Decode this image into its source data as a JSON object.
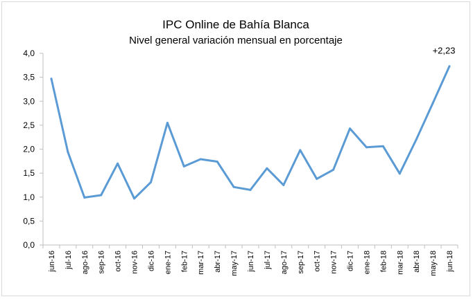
{
  "chart_data": {
    "type": "line",
    "title": "IPC Online de Bahía Blanca",
    "subtitle": "Nivel general variación mensual en porcentaje",
    "xlabel": "",
    "ylabel": "",
    "ylim": [
      0,
      4
    ],
    "ytick_labels": [
      "0,0",
      "0,5",
      "1,0",
      "1,5",
      "2,0",
      "2,5",
      "3,0",
      "3,5",
      "4,0"
    ],
    "grid": false,
    "legend": "none",
    "categories": [
      "jun-16",
      "jul-16",
      "ago-16",
      "sep-16",
      "oct-16",
      "nov-16",
      "dic-16",
      "ene-17",
      "feb-17",
      "mar-17",
      "abr-17",
      "may-17",
      "jun-17",
      "jul-17",
      "ago-17",
      "sep-17",
      "oct-17",
      "nov-17",
      "dic-17",
      "ene-18",
      "feb-18",
      "mar-18",
      "abr-18",
      "may-18",
      "jun-18"
    ],
    "series": [
      {
        "values": [
          3.47,
          1.94,
          0.99,
          1.04,
          1.7,
          0.97,
          1.31,
          2.55,
          1.64,
          1.79,
          1.74,
          1.21,
          1.15,
          1.6,
          1.25,
          1.98,
          1.38,
          1.57,
          2.43,
          2.04,
          2.06,
          1.49,
          2.2,
          2.96,
          3.73
        ],
        "color": "#5b9bd5"
      }
    ],
    "annotation": "+2,23"
  }
}
